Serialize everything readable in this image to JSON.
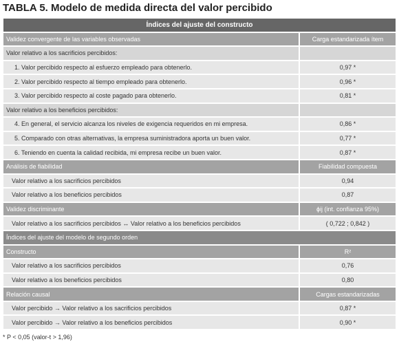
{
  "title": "TABLA 5. Modelo de medida directa del valor percibido",
  "table": {
    "blocks": [
      {
        "header": "Índices del ajuste del constructo",
        "sections": [
          {
            "heading": [
              "Validez convergente de las variables observadas",
              "Carga estandarizada ítem"
            ],
            "groups": [
              {
                "label": "Valor relativo a los sacrificios percibidos:",
                "rows": [
                  [
                    "1. Valor percibido respecto al esfuerzo empleado para obtenerlo.",
                    "0,97 *"
                  ],
                  [
                    "2. Valor percibido respecto al tiempo empleado para obtenerlo.",
                    "0,96 *"
                  ],
                  [
                    "3. Valor percibido respecto al coste pagado para obtenerlo.",
                    "0,81 *"
                  ]
                ]
              },
              {
                "label": "Valor relativo a los beneficios percibidos:",
                "rows": [
                  [
                    "4. En general, el servicio alcanza los niveles de exigencia requeridos en mi empresa.",
                    "0,86 *"
                  ],
                  [
                    "5. Comparado con otras alternativas, la empresa suministradora aporta un buen valor.",
                    "0,77 *"
                  ],
                  [
                    "6. Teniendo en cuenta la calidad recibida, mi empresa recibe un buen valor.",
                    "0,87 *"
                  ]
                ]
              }
            ]
          },
          {
            "heading": [
              "Análisis de fiabilidad",
              "Fiabilidad compuesta"
            ],
            "rows": [
              [
                "Valor relativo a los sacrificios percibidos",
                "0,94"
              ],
              [
                "Valor relativo a los beneficios percibidos",
                "0,87"
              ]
            ]
          },
          {
            "heading": [
              "Validez discriminante",
              "ϕij (int. confianza 95%)"
            ],
            "rows": [
              [
                "Valor relativo a los sacrificios percibidos ↔ Valor relativo a los beneficios percibidos",
                "( 0,722 ; 0,842 )"
              ]
            ]
          }
        ]
      },
      {
        "header": "Índices del ajuste del modelo de segundo orden",
        "sections": [
          {
            "heading": [
              "Constructo",
              "R²"
            ],
            "rows": [
              [
                "Valor relativo a los sacrificios percibidos",
                "0,76"
              ],
              [
                "Valor relativo a los beneficios percibidos",
                "0,80"
              ]
            ]
          },
          {
            "heading": [
              "Relación causal",
              "Cargas estandarizadas"
            ],
            "rows": [
              [
                "Valor percibido → Valor relativo a los sacrificios percibidos",
                "0,87 *"
              ],
              [
                "Valor percibido → Valor relativo a los beneficios percibidos",
                "0,90 *"
              ]
            ]
          }
        ]
      }
    ]
  },
  "footnote": "* P < 0,05 (valor-t > 1,96)"
}
